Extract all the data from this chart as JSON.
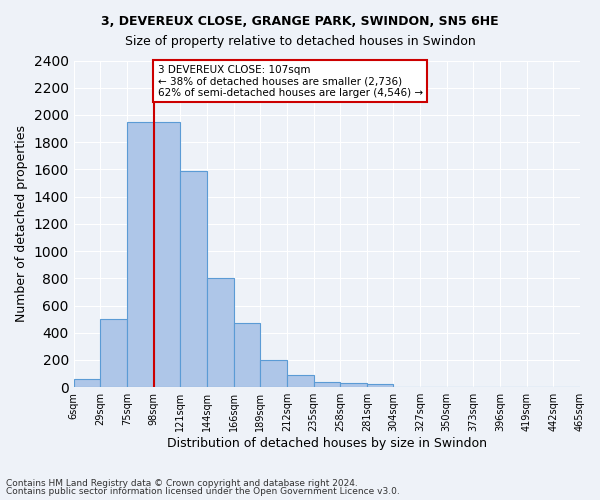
{
  "title1": "3, DEVEREUX CLOSE, GRANGE PARK, SWINDON, SN5 6HE",
  "title2": "Size of property relative to detached houses in Swindon",
  "xlabel": "Distribution of detached houses by size in Swindon",
  "ylabel": "Number of detached properties",
  "bar_values": [
    60,
    500,
    1950,
    1950,
    1590,
    800,
    475,
    200,
    90,
    35,
    30,
    20,
    0,
    0,
    0,
    0,
    0,
    0,
    0
  ],
  "bar_labels": [
    "6sqm",
    "29sqm",
    "75sqm",
    "98sqm",
    "121sqm",
    "144sqm",
    "166sqm",
    "189sqm",
    "212sqm",
    "235sqm",
    "258sqm",
    "281sqm",
    "304sqm",
    "327sqm",
    "350sqm",
    "373sqm",
    "396sqm",
    "419sqm",
    "442sqm",
    "465sqm"
  ],
  "bar_color": "#aec6e8",
  "bar_edgecolor": "#5b9bd5",
  "vline_x": 3,
  "vline_color": "#cc0000",
  "annotation_text": "3 DEVEREUX CLOSE: 107sqm\n← 38% of detached houses are smaller (2,736)\n62% of semi-detached houses are larger (4,546) →",
  "annotation_box_color": "#ffffff",
  "annotation_box_edgecolor": "#cc0000",
  "ylim": [
    0,
    2400
  ],
  "yticks": [
    0,
    200,
    400,
    600,
    800,
    1000,
    1200,
    1400,
    1600,
    1800,
    2000,
    2200,
    2400
  ],
  "footnote1": "Contains HM Land Registry data © Crown copyright and database right 2024.",
  "footnote2": "Contains public sector information licensed under the Open Government Licence v3.0.",
  "bg_color": "#eef2f8",
  "grid_color": "#ffffff"
}
